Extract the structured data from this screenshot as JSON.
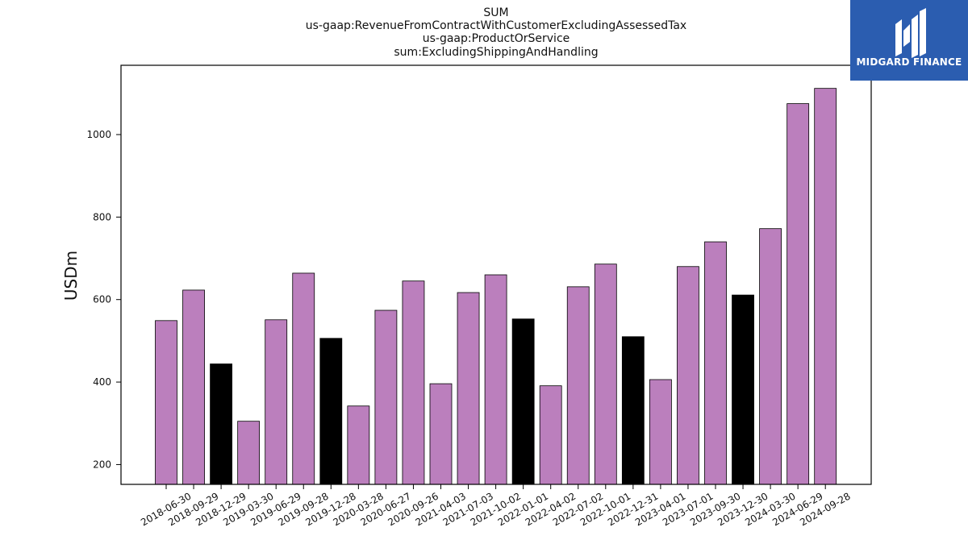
{
  "chart_data": {
    "type": "bar",
    "title_lines": [
      "SUM",
      "us-gaap:RevenueFromContractWithCustomerExcludingAssessedTax",
      "us-gaap:ProductOrService",
      "sum:ExcludingShippingAndHandling"
    ],
    "ylabel": "USDm",
    "xlabel": "",
    "ylim": [
      152,
      1168
    ],
    "yticks": [
      200,
      400,
      600,
      800,
      1000
    ],
    "grid": false,
    "categories": [
      "2018-06-30",
      "2018-09-29",
      "2018-12-29",
      "2019-03-30",
      "2019-06-29",
      "2019-09-28",
      "2019-12-28",
      "2020-03-28",
      "2020-06-27",
      "2020-09-26",
      "2021-04-03",
      "2021-07-03",
      "2021-10-02",
      "2022-01-01",
      "2022-04-02",
      "2022-07-02",
      "2022-10-01",
      "2022-12-31",
      "2023-04-01",
      "2023-07-01",
      "2023-09-30",
      "2023-12-30",
      "2024-03-30",
      "2024-06-29",
      "2024-09-28"
    ],
    "values": [
      549,
      623,
      444,
      305,
      551,
      664,
      506,
      342,
      574,
      645,
      396,
      617,
      660,
      553,
      391,
      631,
      686,
      510,
      406,
      680,
      740,
      611,
      772,
      1075,
      1112
    ],
    "highlight": [
      false,
      false,
      true,
      false,
      false,
      false,
      true,
      false,
      false,
      false,
      false,
      false,
      false,
      true,
      false,
      false,
      false,
      true,
      false,
      false,
      false,
      true,
      false,
      false,
      false
    ],
    "colors": {
      "bar": "#bb7fbd",
      "highlight": "#000000",
      "edge": "#000000"
    }
  },
  "logo": {
    "text": "MIDGARD FINANCE",
    "background": "#2b5db0"
  }
}
